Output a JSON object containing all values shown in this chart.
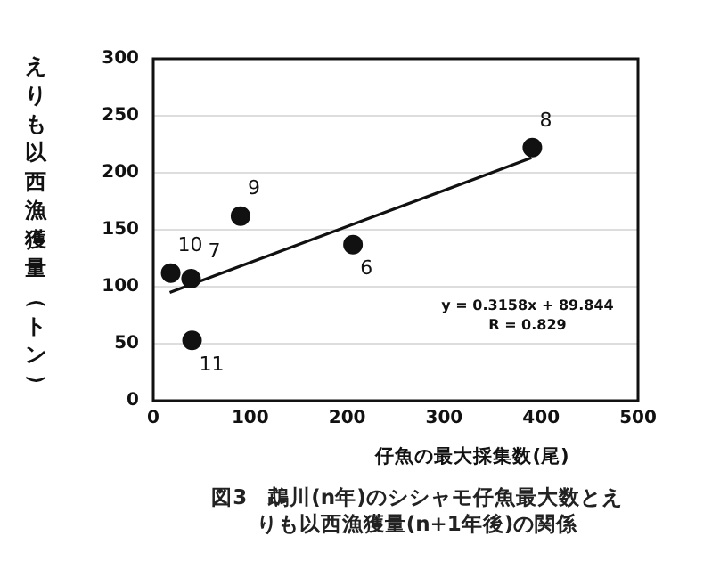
{
  "chart_data": {
    "type": "scatter",
    "title": "図3　鵡川(n年)のシシャモ仔魚最大数とえりも以西漁獲量(n+1年後)の関係",
    "xlabel": "仔魚の最大採集数(尾)",
    "ylabel": "えりも以西漁獲量（トン）",
    "xlim": [
      0,
      500
    ],
    "xticks": [
      0,
      100,
      200,
      300,
      400,
      500
    ],
    "ylim": [
      0,
      300
    ],
    "yticks": [
      0,
      50,
      100,
      150,
      200,
      250,
      300
    ],
    "grid": "y",
    "marker": "circle",
    "x": [
      18,
      39,
      40,
      90,
      206,
      391
    ],
    "series": [
      {
        "color": "#111111",
        "values": [
          112,
          107,
          53,
          162,
          137,
          222
        ]
      },
      {
        "type": "line",
        "color": "#111111",
        "marker": "none",
        "x": [
          17,
          390
        ],
        "values": [
          95,
          213
        ]
      }
    ],
    "annotations": [
      {
        "text": "10",
        "x": 18,
        "y": 112
      },
      {
        "text": "7",
        "x": 39,
        "y": 107
      },
      {
        "text": "11",
        "x": 40,
        "y": 53
      },
      {
        "text": "9",
        "x": 90,
        "y": 162
      },
      {
        "text": "6",
        "x": 206,
        "y": 137
      },
      {
        "text": "8",
        "x": 391,
        "y": 222
      },
      "y = 0.3158x + 89.844",
      "R = 0.829"
    ]
  }
}
